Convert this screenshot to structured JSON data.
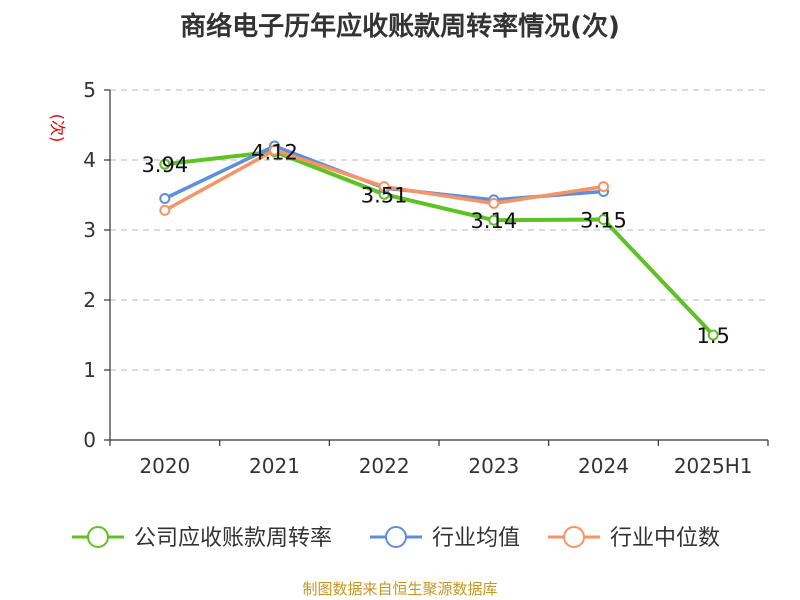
{
  "chart_data": {
    "type": "line",
    "title": "商络电子历年应收账款周转率情况(次)",
    "ylabel": "(次)",
    "xlabel": "",
    "categories": [
      "2020",
      "2021",
      "2022",
      "2023",
      "2024",
      "2025H1"
    ],
    "ylim": [
      0,
      5
    ],
    "yticks": [
      "0",
      "1",
      "2",
      "3",
      "4",
      "5"
    ],
    "grid": true,
    "legend_position": "bottom",
    "series": [
      {
        "name": "公司应收账款周转率",
        "color": "#5cc320",
        "values": [
          3.94,
          4.12,
          3.51,
          3.14,
          3.15,
          1.5
        ],
        "labels": [
          "3.94",
          "4.12",
          "3.51",
          "3.14",
          "3.15",
          "1.5"
        ]
      },
      {
        "name": "行业均值",
        "color": "#5b8fdf",
        "values": [
          3.45,
          4.2,
          3.6,
          3.43,
          3.55,
          null
        ]
      },
      {
        "name": "行业中位数",
        "color": "#f79462",
        "values": [
          3.28,
          4.14,
          3.62,
          3.38,
          3.62,
          null
        ]
      }
    ]
  },
  "source": "制图数据来自恒生聚源数据库"
}
